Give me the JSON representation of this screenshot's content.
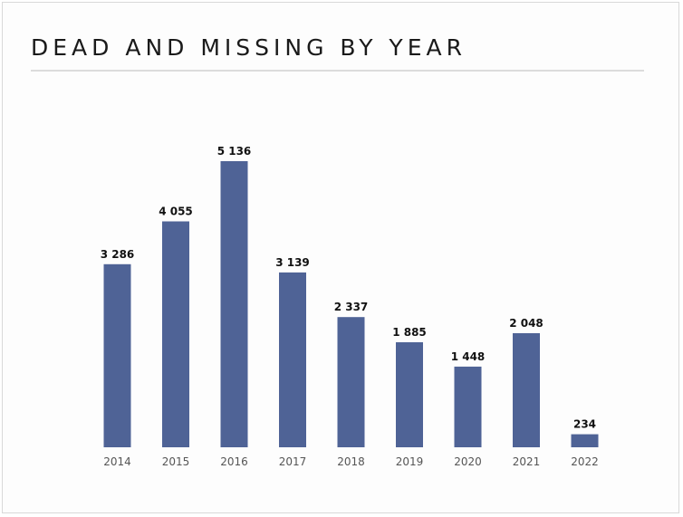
{
  "title": "DEAD AND MISSING BY YEAR",
  "chart_data": {
    "type": "bar",
    "title": "DEAD AND MISSING BY YEAR",
    "categories": [
      "2014",
      "2015",
      "2016",
      "2017",
      "2018",
      "2019",
      "2020",
      "2021",
      "2022"
    ],
    "values": [
      3286,
      4055,
      5136,
      3139,
      2337,
      1885,
      1448,
      2048,
      234
    ],
    "value_labels": [
      "3 286",
      "4 055",
      "5 136",
      "3 139",
      "2 337",
      "1 885",
      "1 448",
      "2 048",
      "234"
    ],
    "xlabel": "",
    "ylabel": "",
    "ylim": [
      0,
      5136
    ],
    "grid": false,
    "legend": "none",
    "bar_color": "#4f6396"
  }
}
